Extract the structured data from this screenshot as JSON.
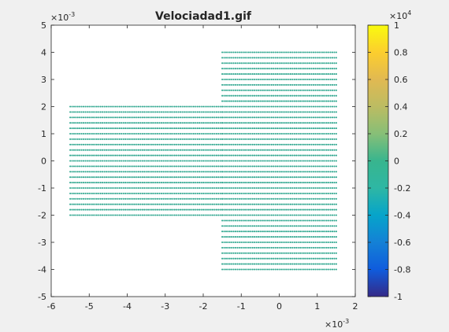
{
  "chart_data": {
    "type": "scatter",
    "title": "Velociadad1.gif",
    "xlabel": "",
    "ylabel": "",
    "xlim": [
      -6,
      2
    ],
    "ylim": [
      -5,
      5
    ],
    "x_scale_label": "×10",
    "x_exponent": "-3",
    "y_scale_label": "×10",
    "y_exponent": "-3",
    "x_ticks": [
      -6,
      -5,
      -4,
      -3,
      -2,
      -1,
      0,
      1,
      2
    ],
    "y_ticks": [
      -5,
      -4,
      -3,
      -2,
      -1,
      0,
      1,
      2,
      3,
      4,
      5
    ],
    "grid": false,
    "marker_color": "#2ca58d",
    "regions": [
      {
        "x_range": [
          -5.5,
          -1.5
        ],
        "y_range": [
          -2.0,
          2.0
        ],
        "row_step": 0.2
      },
      {
        "x_range": [
          -1.5,
          1.5
        ],
        "y_range": [
          -4.0,
          4.0
        ],
        "row_step": 0.2
      }
    ],
    "colorbar": {
      "colormap": "parula",
      "range": [
        -1,
        1
      ],
      "ticks": [
        "-1",
        "-0.8",
        "-0.6",
        "-0.4",
        "-0.2",
        "0",
        "0.2",
        "0.4",
        "0.6",
        "0.8",
        "1"
      ],
      "scale_label": "×10",
      "exponent": "4"
    }
  }
}
